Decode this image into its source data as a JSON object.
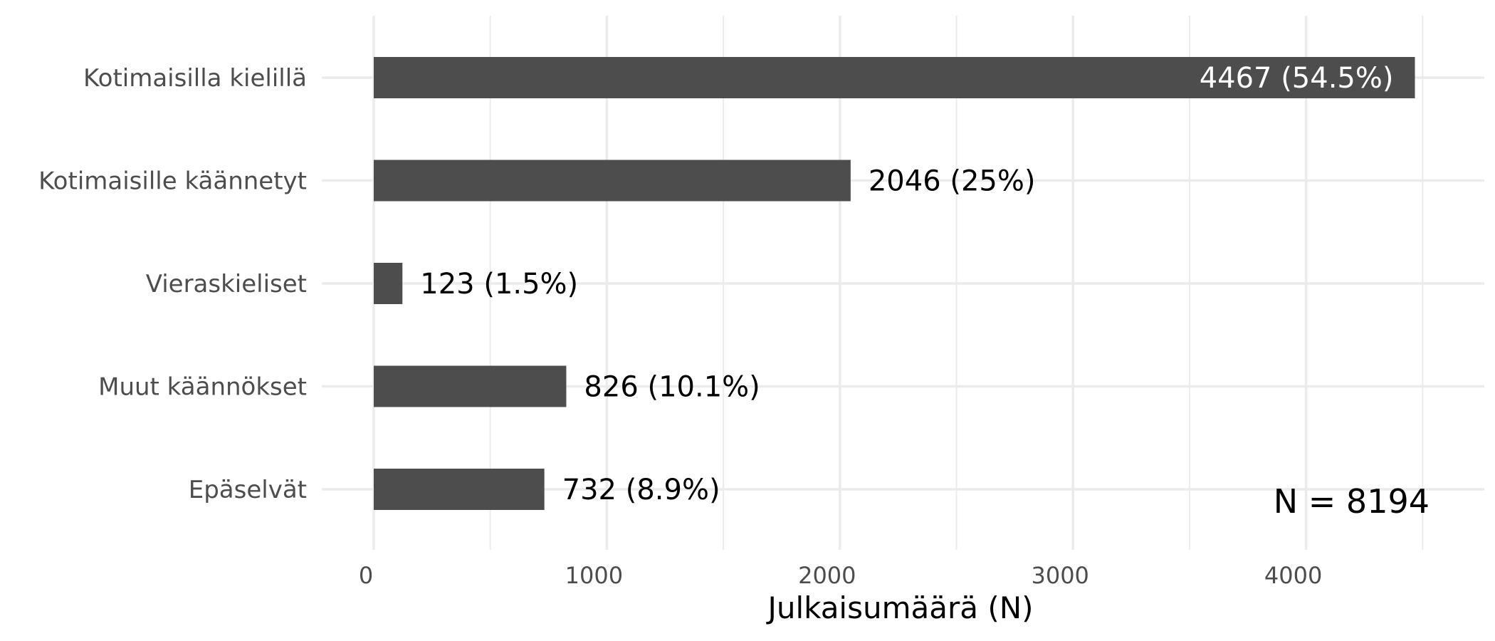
{
  "chart_data": {
    "type": "bar",
    "orientation": "horizontal",
    "categories": [
      "Kotimaisilla kielillä",
      "Kotimaisille käännetyt",
      "Vieraskieliset",
      "Muut käännökset",
      "Epäselvät"
    ],
    "values": [
      4467,
      2046,
      123,
      826,
      732
    ],
    "data_labels": [
      "4467 (54.5%)",
      "2046 (25%)",
      "123 (1.5%)",
      "826 (10.1%)",
      "732 (8.9%)"
    ],
    "xlabel": "Julkaisumäärä (N)",
    "ylabel": "",
    "xlim": [
      0,
      4700
    ],
    "xticks": [
      0,
      1000,
      2000,
      3000,
      4000
    ],
    "xtick_labels": [
      "0",
      "1000",
      "2000",
      "3000",
      "4000"
    ],
    "grid": true,
    "bar_color": "#4d4d4d",
    "annotation": "N =  8194"
  }
}
